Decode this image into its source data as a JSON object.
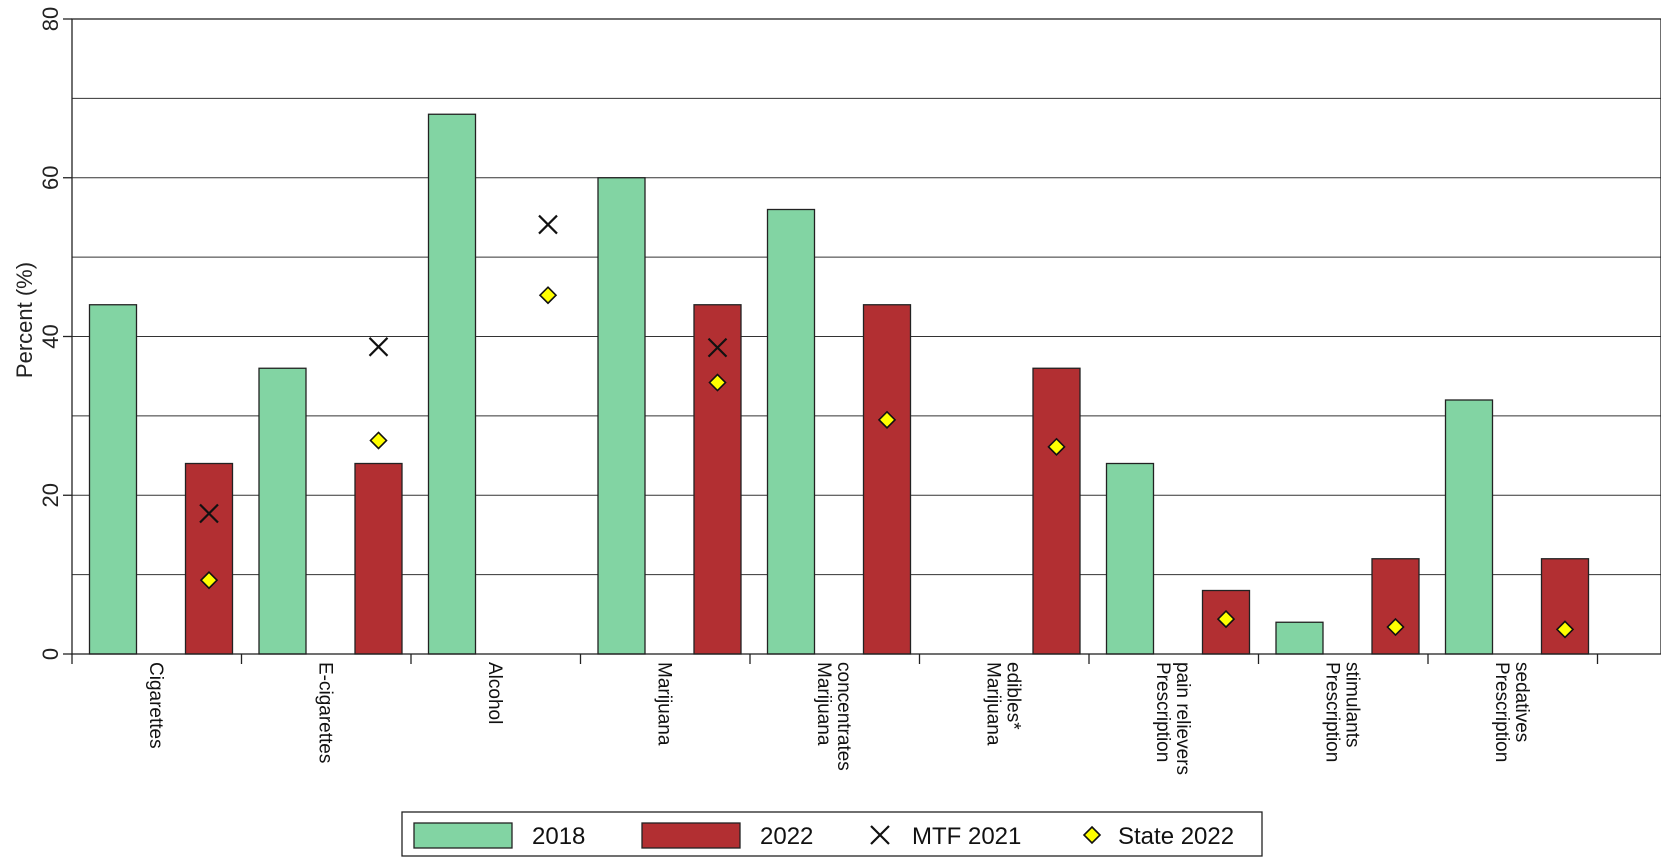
{
  "chart_data": {
    "type": "bar",
    "ylabel": "Percent (%)",
    "ylim": [
      0,
      80
    ],
    "yticks": [
      0,
      20,
      40,
      60,
      80
    ],
    "gridlines": [
      10,
      20,
      30,
      40,
      50,
      60,
      70,
      80
    ],
    "grid": true,
    "legend_position": "bottom",
    "categories": [
      [
        "Cigarettes"
      ],
      [
        "E-cigarettes"
      ],
      [
        "Alcohol"
      ],
      [
        "Marijuana"
      ],
      [
        "Marijuana",
        "concentrates"
      ],
      [
        "Marijuana",
        "edibles*"
      ],
      [
        "Prescription",
        "pain relievers"
      ],
      [
        "Prescription",
        "stimulants"
      ],
      [
        "Prescription",
        "sedatives"
      ]
    ],
    "series": [
      {
        "name": "2018",
        "kind": "bar",
        "color": "#82d4a3",
        "values": [
          44,
          36,
          68,
          60,
          56,
          null,
          24,
          4,
          32
        ]
      },
      {
        "name": "2022",
        "kind": "bar",
        "color": "#b22f32",
        "values": [
          24,
          24,
          null,
          44,
          44,
          36,
          8,
          12,
          12
        ]
      },
      {
        "name": "MTF 2021",
        "kind": "marker-x",
        "color": "#111111",
        "values": [
          17.7,
          38.7,
          54.1,
          38.6,
          null,
          null,
          null,
          null,
          null
        ]
      },
      {
        "name": "State 2022",
        "kind": "marker-diamond",
        "color": "#ffff00",
        "values": [
          9.3,
          26.9,
          45.2,
          34.2,
          29.5,
          26.1,
          4.4,
          3.4,
          3.1
        ]
      }
    ]
  }
}
